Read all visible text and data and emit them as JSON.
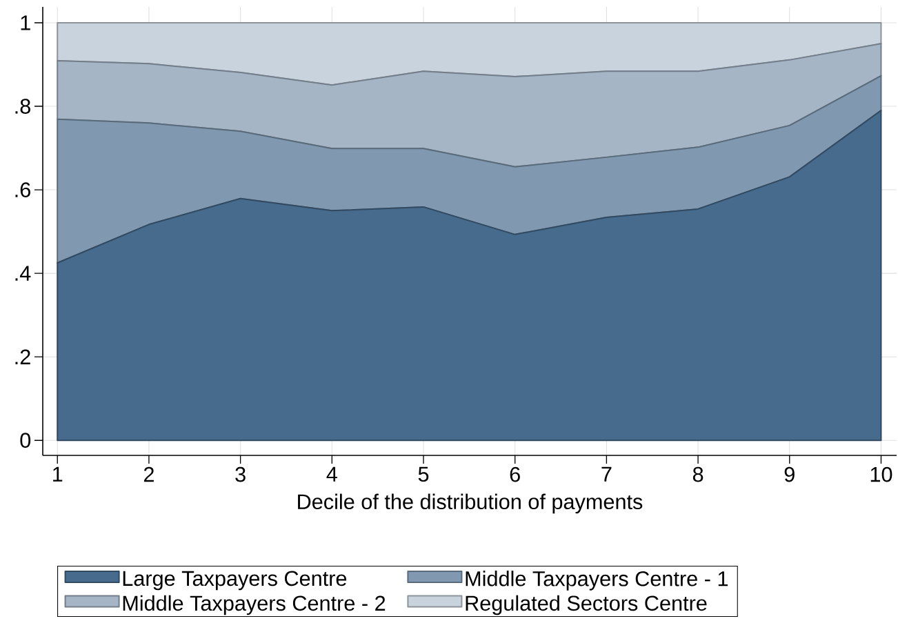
{
  "chart_data": {
    "type": "area",
    "stacked": true,
    "xlabel": "Decile of the distribution of payments",
    "x": [
      1,
      2,
      3,
      4,
      5,
      6,
      7,
      8,
      9,
      10
    ],
    "xlim": [
      0.84,
      10.17
    ],
    "ylim": [
      -0.036,
      1.038
    ],
    "xticks": [
      1,
      2,
      3,
      4,
      5,
      6,
      7,
      8,
      9,
      10
    ],
    "yticks": [
      0,
      {
        "value": 0.2,
        "label": ".2"
      },
      {
        "value": 0.4,
        "label": ".4"
      },
      {
        "value": 0.6,
        "label": ".6"
      },
      {
        "value": 0.8,
        "label": ".8"
      },
      1
    ],
    "grid": true,
    "legend": "bottom",
    "series": [
      {
        "name": "Large Taxpayers Centre",
        "color": "#476b8c",
        "values": [
          0.425,
          0.517,
          0.579,
          0.55,
          0.559,
          0.493,
          0.534,
          0.554,
          0.631,
          0.79
        ]
      },
      {
        "name": "Middle Taxpayers Centre - 1",
        "color": "#8099b0",
        "values": [
          0.344,
          0.243,
          0.161,
          0.149,
          0.14,
          0.162,
          0.144,
          0.148,
          0.123,
          0.083
        ]
      },
      {
        "name": "Middle Taxpayers Centre - 2",
        "color": "#a5b5c6",
        "values": [
          0.14,
          0.142,
          0.141,
          0.152,
          0.185,
          0.216,
          0.206,
          0.182,
          0.157,
          0.077
        ]
      },
      {
        "name": "Regulated Sectors Centre",
        "color": "#c9d3de",
        "values": [
          0.091,
          0.098,
          0.119,
          0.149,
          0.116,
          0.129,
          0.116,
          0.116,
          0.089,
          0.05
        ]
      }
    ]
  }
}
